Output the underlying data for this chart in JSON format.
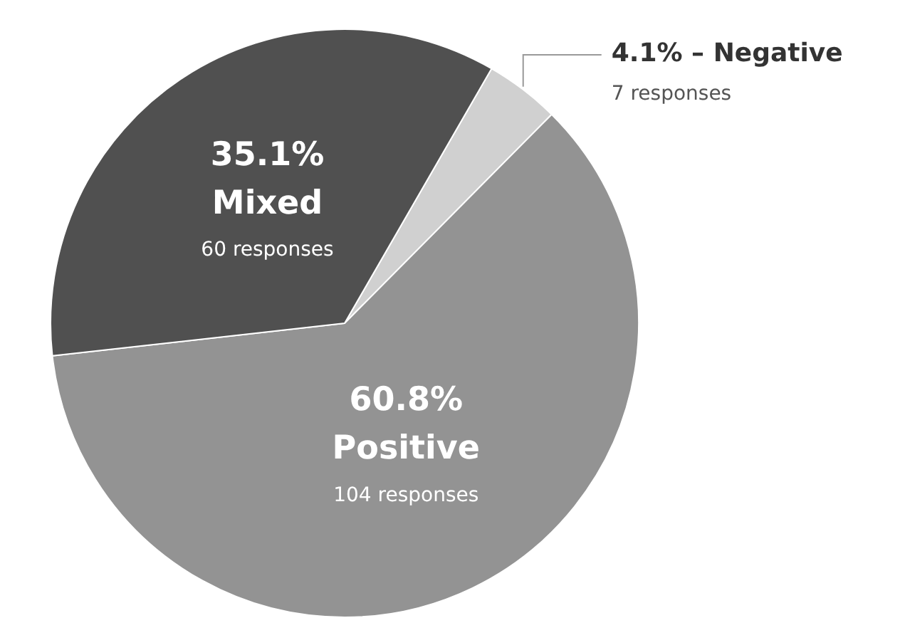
{
  "chart_data": {
    "type": "pie",
    "categories": [
      "Negative",
      "Positive",
      "Mixed"
    ],
    "values": [
      4.1,
      60.8,
      35.1
    ],
    "colors": [
      "#d0d0d0",
      "#939393",
      "#505050"
    ],
    "value_labels": [
      "4.1%",
      "60.8%",
      "35.1%"
    ],
    "annotations": [
      {
        "text": "7 responses",
        "x": "Negative"
      },
      {
        "text": "104 responses",
        "x": "Positive"
      },
      {
        "text": "60 responses",
        "x": "Mixed"
      }
    ],
    "legend": false
  }
}
